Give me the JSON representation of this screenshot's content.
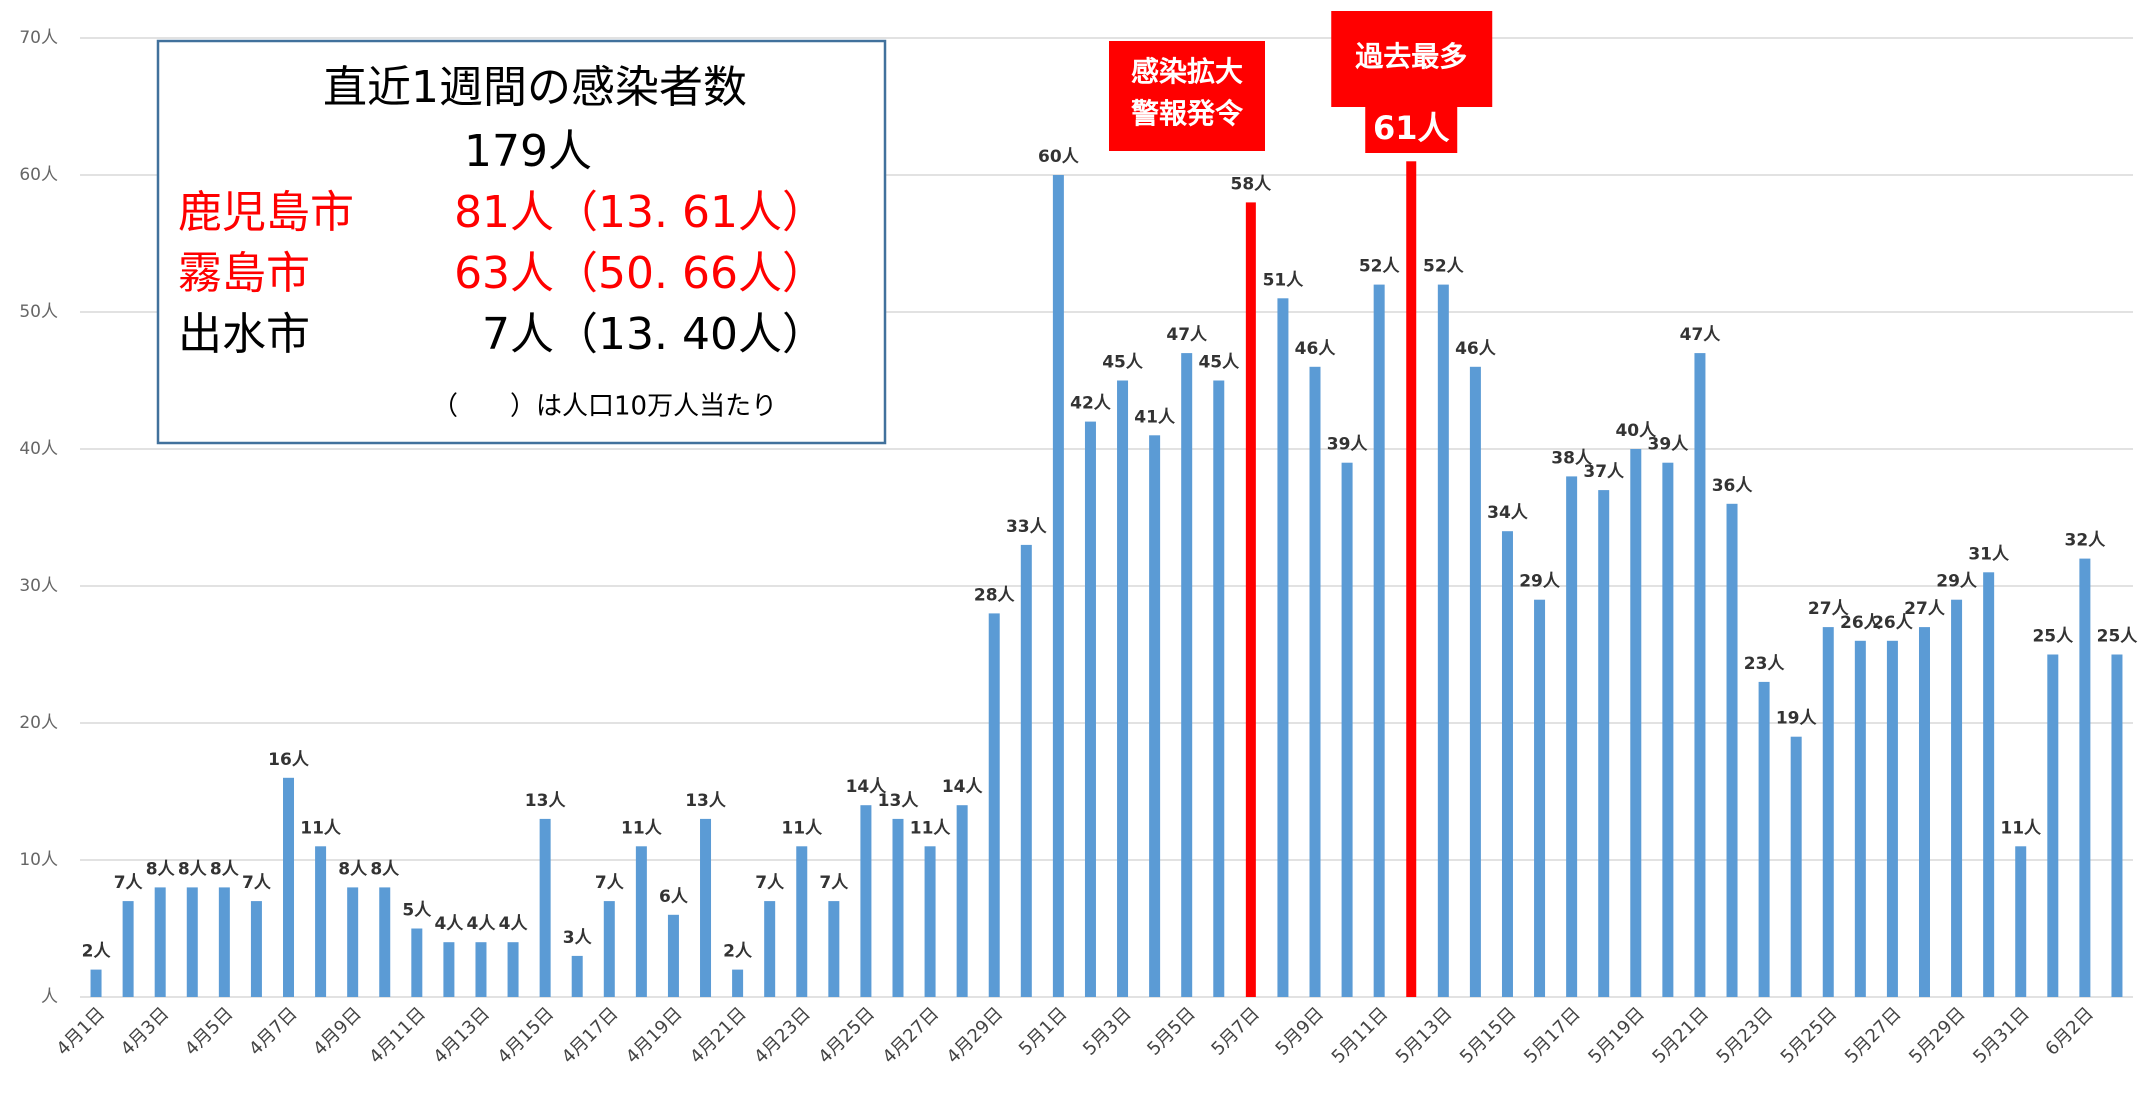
{
  "chart_data": {
    "type": "bar",
    "categories": [
      "4月1日",
      null,
      "4月3日",
      null,
      "4月5日",
      null,
      "4月7日",
      null,
      "4月9日",
      null,
      "4月11日",
      null,
      "4月13日",
      null,
      "4月15日",
      null,
      "4月17日",
      null,
      "4月19日",
      null,
      "4月21日",
      null,
      "4月23日",
      null,
      "4月25日",
      null,
      "4月27日",
      null,
      "4月29日",
      null,
      "5月1日",
      null,
      "5月3日",
      null,
      "5月5日",
      null,
      "5月7日",
      null,
      "5月9日",
      null,
      "5月11日",
      null,
      "5月13日",
      null,
      "5月15日",
      null,
      "5月17日",
      null,
      "5月19日",
      null,
      "5月21日",
      null,
      "5月23日",
      null,
      "5月25日",
      null,
      "5月27日",
      null,
      "5月29日",
      null,
      "5月31日",
      null,
      "6月2日",
      null
    ],
    "values": [
      2,
      7,
      8,
      8,
      8,
      7,
      16,
      11,
      8,
      8,
      5,
      4,
      4,
      4,
      13,
      3,
      7,
      11,
      6,
      13,
      2,
      7,
      11,
      7,
      14,
      13,
      11,
      14,
      28,
      33,
      60,
      42,
      45,
      41,
      47,
      45,
      58,
      51,
      46,
      39,
      52,
      61,
      52,
      46,
      34,
      29,
      38,
      37,
      40,
      39,
      47,
      36,
      23,
      19,
      27,
      26,
      26,
      27,
      29,
      31,
      11,
      25,
      32,
      25
    ],
    "value_labels": [
      "2人",
      "7人",
      "8人",
      "8人",
      "8人",
      "7人",
      "16人",
      "11人",
      "8人",
      "8人",
      "5人",
      "4人",
      "4人",
      "4人",
      "13人",
      "3人",
      "7人",
      "11人",
      "6人",
      "13人",
      "2人",
      "7人",
      "11人",
      "7人",
      "14人",
      "13人",
      "11人",
      "14人",
      "28人",
      "33人",
      "60人",
      "42人",
      "45人",
      "41人",
      "47人",
      "45人",
      "58人",
      "51人",
      "46人",
      "39人",
      "52人",
      "61人",
      "52人",
      "46人",
      "34人",
      "29人",
      "38人",
      "37人",
      "40人",
      "39人",
      "47人",
      "36人",
      "23人",
      "19人",
      "27人",
      "26人",
      "26人",
      "27人",
      "29人",
      "31人",
      "11人",
      "25人",
      "32人",
      "25人"
    ],
    "colors": [
      "#5b9bd5",
      "#5b9bd5",
      "#5b9bd5",
      "#5b9bd5",
      "#5b9bd5",
      "#5b9bd5",
      "#5b9bd5",
      "#5b9bd5",
      "#5b9bd5",
      "#5b9bd5",
      "#5b9bd5",
      "#5b9bd5",
      "#5b9bd5",
      "#5b9bd5",
      "#5b9bd5",
      "#5b9bd5",
      "#5b9bd5",
      "#5b9bd5",
      "#5b9bd5",
      "#5b9bd5",
      "#5b9bd5",
      "#5b9bd5",
      "#5b9bd5",
      "#5b9bd5",
      "#5b9bd5",
      "#5b9bd5",
      "#5b9bd5",
      "#5b9bd5",
      "#5b9bd5",
      "#5b9bd5",
      "#5b9bd5",
      "#5b9bd5",
      "#5b9bd5",
      "#5b9bd5",
      "#5b9bd5",
      "#5b9bd5",
      "#ff0000",
      "#5b9bd5",
      "#5b9bd5",
      "#5b9bd5",
      "#5b9bd5",
      "#ff0000",
      "#5b9bd5",
      "#5b9bd5",
      "#5b9bd5",
      "#5b9bd5",
      "#5b9bd5",
      "#5b9bd5",
      "#5b9bd5",
      "#5b9bd5",
      "#5b9bd5",
      "#5b9bd5",
      "#5b9bd5",
      "#5b9bd5",
      "#5b9bd5",
      "#5b9bd5",
      "#5b9bd5",
      "#5b9bd5",
      "#5b9bd5",
      "#5b9bd5",
      "#5b9bd5",
      "#5b9bd5",
      "#5b9bd5",
      "#5b9bd5"
    ],
    "ylim": [
      0,
      70
    ],
    "yticks": [
      {
        "value": 0,
        "label": "人"
      },
      {
        "value": 10,
        "label": "10人"
      },
      {
        "value": 20,
        "label": "20人"
      },
      {
        "value": 30,
        "label": "30人"
      },
      {
        "value": 40,
        "label": "40人"
      },
      {
        "value": 50,
        "label": "50人"
      },
      {
        "value": 60,
        "label": "60人"
      },
      {
        "value": 70,
        "label": "70人"
      }
    ],
    "grid": true,
    "alert_annotation": [
      "感染拡大",
      "警報発令"
    ],
    "record_annotation": "過去最多",
    "info_box": {
      "title": "直近1週間の感染者数",
      "total": "179人",
      "rows": [
        {
          "name": "鹿児島市",
          "value": "81人（13. 61人）",
          "color": "#ff0000"
        },
        {
          "name": "霧島市",
          "value": "63人（50. 66人）",
          "color": "#ff0000"
        },
        {
          "name": "出水市",
          "value": "7人（13. 40人）",
          "color": "#000000"
        }
      ],
      "note": "（　　）は人口10万人当たり"
    }
  }
}
